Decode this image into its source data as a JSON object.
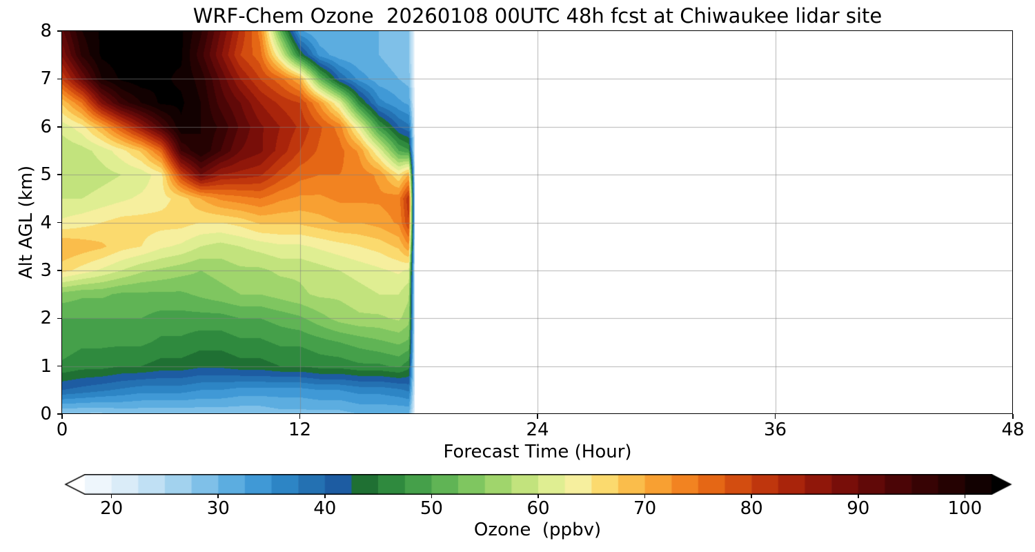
{
  "chart_data": {
    "type": "heatmap",
    "title": "WRF-Chem Ozone  20260108 00UTC 48h fcst at Chiwaukee lidar site",
    "xlabel": "Forecast Time (Hour)",
    "ylabel": "Alt AGL (km)",
    "xlim": [
      0,
      48
    ],
    "ylim": [
      0,
      8
    ],
    "x_ticks": [
      0,
      12,
      24,
      36,
      48
    ],
    "y_ticks": [
      0,
      1,
      2,
      3,
      4,
      5,
      6,
      7,
      8
    ],
    "grid": true,
    "grid_color": "rgba(130,130,130,0.6)",
    "no_data_color": "#ffffff",
    "data_extent_hours": [
      0,
      17.8
    ],
    "hours": [
      0,
      1,
      2,
      3,
      4,
      5,
      6,
      7,
      8,
      9,
      10,
      11,
      12,
      13,
      14,
      15,
      16,
      17,
      17.5,
      17.8
    ],
    "altitudes_km": [
      0,
      0.5,
      1,
      1.5,
      2,
      2.5,
      3,
      3.5,
      4,
      4.5,
      5,
      5.5,
      6,
      6.5,
      7,
      7.5,
      8
    ],
    "ozone_ppbv": [
      [
        27,
        27,
        27,
        28,
        28,
        28,
        28,
        28,
        28,
        28,
        28,
        29,
        29,
        29,
        29,
        30,
        30,
        30,
        30,
        20
      ],
      [
        40,
        39,
        38,
        37,
        36,
        36,
        36,
        35,
        35,
        34,
        34,
        34,
        34,
        35,
        35,
        36,
        36,
        37,
        38,
        22
      ],
      [
        47,
        46,
        46,
        45,
        45,
        44,
        44,
        43,
        43,
        44,
        44,
        45,
        45,
        46,
        46,
        47,
        47,
        48,
        46,
        22
      ],
      [
        49,
        48,
        48,
        48,
        48,
        47,
        47,
        46,
        46,
        47,
        47,
        48,
        48,
        49,
        50,
        51,
        52,
        53,
        52,
        22
      ],
      [
        50,
        50,
        50,
        50,
        50,
        49,
        49,
        49,
        49,
        50,
        50,
        51,
        52,
        54,
        56,
        57,
        57,
        58,
        56,
        22
      ],
      [
        54,
        53,
        53,
        52,
        52,
        52,
        52,
        53,
        54,
        55,
        55,
        56,
        57,
        58,
        58,
        59,
        60,
        60,
        58,
        22
      ],
      [
        66,
        64,
        62,
        60,
        58,
        57,
        56,
        55,
        56,
        57,
        57,
        58,
        58,
        59,
        60,
        61,
        62,
        63,
        62,
        22
      ],
      [
        70,
        69,
        68,
        66,
        65,
        63,
        62,
        60,
        59,
        60,
        61,
        62,
        62,
        63,
        64,
        65,
        66,
        68,
        72,
        24
      ],
      [
        63,
        64,
        65,
        66,
        66,
        66,
        66,
        65,
        65,
        66,
        68,
        68,
        68,
        69,
        70,
        70,
        71,
        73,
        80,
        26
      ],
      [
        60,
        60,
        61,
        62,
        63,
        64,
        66,
        70,
        73,
        74,
        75,
        73,
        72,
        72,
        73,
        73,
        73,
        74,
        82,
        26
      ],
      [
        58,
        58,
        59,
        60,
        61,
        64,
        80,
        90,
        85,
        84,
        83,
        79,
        76,
        75,
        75,
        74,
        72,
        65,
        70,
        24
      ],
      [
        58,
        59,
        61,
        64,
        68,
        76,
        95,
        100,
        95,
        90,
        88,
        84,
        80,
        77,
        76,
        72,
        62,
        50,
        48,
        22
      ],
      [
        61,
        64,
        70,
        78,
        86,
        94,
        102,
        100,
        97,
        92,
        88,
        85,
        82,
        78,
        74,
        62,
        48,
        40,
        38,
        21
      ],
      [
        68,
        75,
        88,
        96,
        100,
        103,
        103,
        100,
        94,
        90,
        85,
        82,
        80,
        72,
        62,
        46,
        36,
        33,
        32,
        20
      ],
      [
        80,
        90,
        100,
        103,
        104,
        103,
        102,
        99,
        92,
        85,
        80,
        76,
        70,
        52,
        40,
        34,
        31,
        30,
        29,
        19
      ],
      [
        88,
        98,
        103,
        104,
        104,
        103,
        103,
        96,
        88,
        80,
        76,
        62,
        45,
        34,
        31,
        30,
        30,
        29,
        28,
        19
      ],
      [
        92,
        100,
        103,
        104,
        104,
        103,
        103,
        98,
        90,
        82,
        74,
        52,
        33,
        30,
        30,
        30,
        30,
        29,
        28,
        19
      ]
    ],
    "colorbar": {
      "label": "Ozone  (ppbv)",
      "ticks": [
        20,
        30,
        40,
        50,
        60,
        70,
        80,
        90,
        100
      ],
      "vmin": 17.5,
      "vmax": 102.5,
      "band_step": 2.5,
      "extend": "both",
      "under_color": "#ffffff",
      "over_color": "#000000",
      "band_colors": [
        "#eef6fc",
        "#daecf8",
        "#c0e0f4",
        "#a2d2ee",
        "#7fc0e8",
        "#5cade0",
        "#4099d6",
        "#2d85c5",
        "#2471b2",
        "#1d5ca2",
        "#1f7033",
        "#2f8a3e",
        "#45a04a",
        "#60b455",
        "#7fc660",
        "#a0d56c",
        "#c2e37d",
        "#dfee92",
        "#f6ef9e",
        "#fbda6e",
        "#fabd4b",
        "#f8a032",
        "#f28321",
        "#e56715",
        "#d34d10",
        "#bf360d",
        "#a9240b",
        "#90170a",
        "#780e09",
        "#610908",
        "#4b0506",
        "#370304",
        "#250202",
        "#120101"
      ]
    }
  }
}
